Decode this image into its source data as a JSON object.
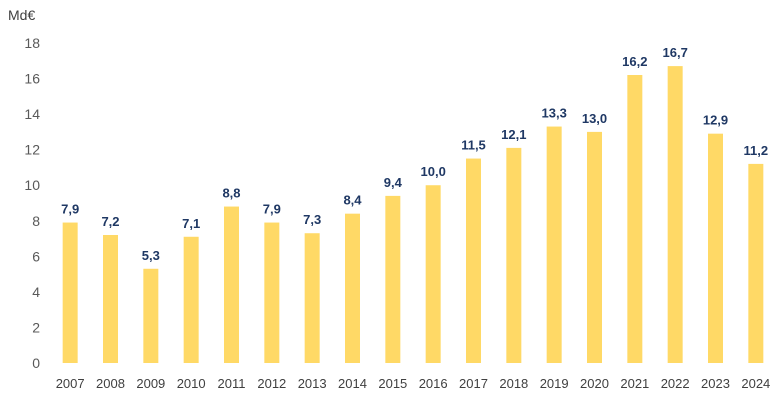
{
  "chart_data": {
    "type": "bar",
    "unit_label": "Md€",
    "categories": [
      "2007",
      "2008",
      "2009",
      "2010",
      "2011",
      "2012",
      "2013",
      "2014",
      "2015",
      "2016",
      "2017",
      "2018",
      "2019",
      "2020",
      "2021",
      "2022",
      "2023",
      "2024"
    ],
    "values": [
      7.9,
      7.2,
      5.3,
      7.1,
      8.8,
      7.9,
      7.3,
      8.4,
      9.4,
      10.0,
      11.5,
      12.1,
      13.3,
      13.0,
      16.2,
      16.7,
      12.9,
      11.2
    ],
    "data_labels": [
      "7,9",
      "7,2",
      "5,3",
      "7,1",
      "8,8",
      "7,9",
      "7,3",
      "8,4",
      "9,4",
      "10,0",
      "11,5",
      "12,1",
      "13,3",
      "13,0",
      "16,2",
      "16,7",
      "12,9",
      "11,2"
    ],
    "y_ticks": [
      "0",
      "2",
      "4",
      "6",
      "8",
      "10",
      "12",
      "14",
      "16",
      "18"
    ],
    "ylim": [
      0,
      18
    ],
    "grid": false,
    "legend": "none",
    "colors": {
      "bar": "#FFD966",
      "data_label": "#1F3864",
      "axis_text": "#595959"
    }
  }
}
